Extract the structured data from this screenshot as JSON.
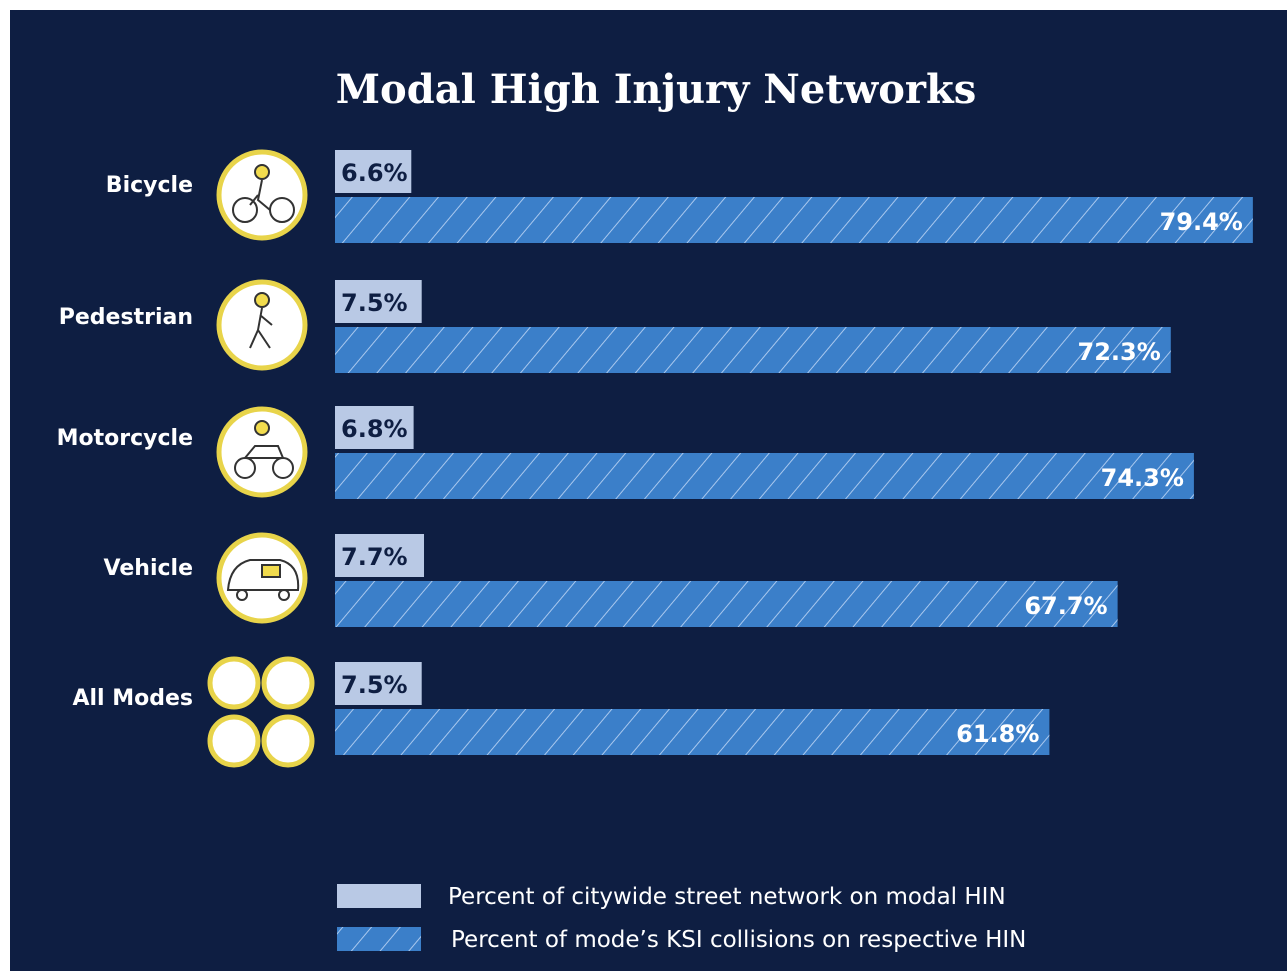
{
  "chart_data": {
    "type": "bar",
    "orientation": "horizontal",
    "title": "Modal High Injury Networks",
    "categories": [
      "Bicycle",
      "Pedestrian",
      "Motorcycle",
      "Vehicle",
      "All Modes"
    ],
    "series": [
      {
        "name": "Percent of citywide street network on modal HIN",
        "color": "#b9c9e5",
        "values": [
          6.6,
          7.5,
          6.8,
          7.7,
          7.5
        ],
        "value_labels": [
          "6.6%",
          "7.5%",
          "6.8%",
          "7.7%",
          "7.5%"
        ]
      },
      {
        "name": "Percent of mode’s KSI collisions on respective HIN",
        "color": "#3b7fc9",
        "hatch": true,
        "values": [
          79.4,
          72.3,
          74.3,
          67.7,
          61.8
        ],
        "value_labels": [
          "79.4%",
          "72.3%",
          "74.3%",
          "67.7%",
          "61.8%"
        ]
      }
    ]
  }
}
